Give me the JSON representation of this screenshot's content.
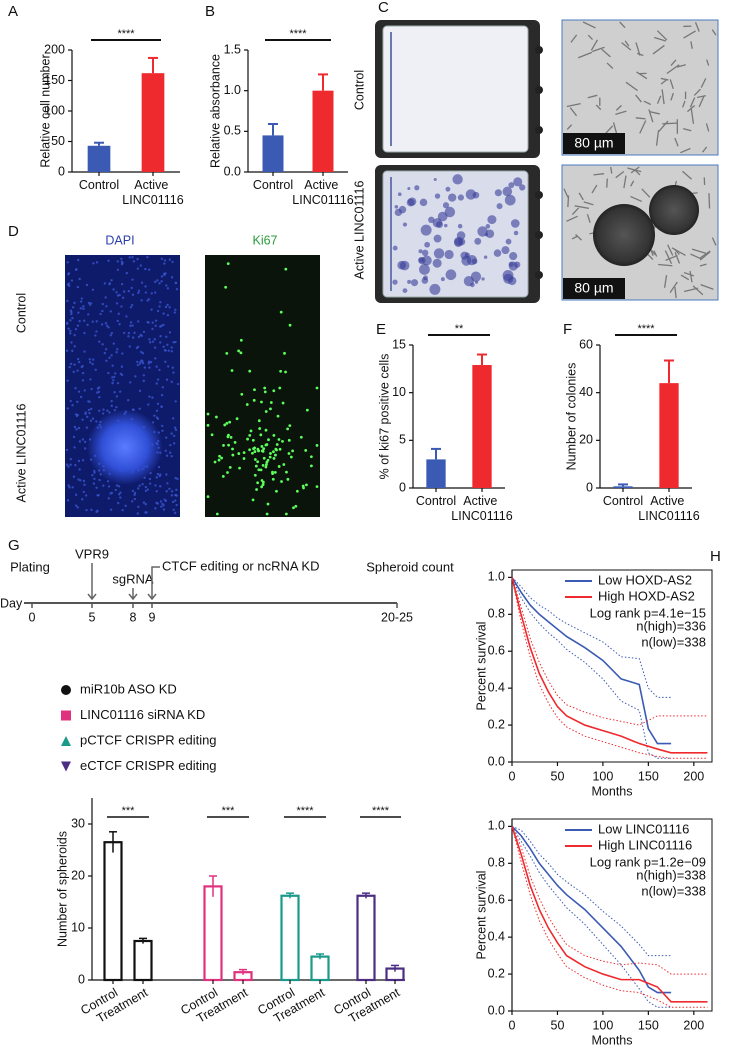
{
  "panel_labels": [
    "A",
    "B",
    "C",
    "D",
    "E",
    "F",
    "G",
    "H"
  ],
  "panel_c": {
    "row_labels": [
      "Control",
      "Active LINC01116"
    ],
    "scale_bars": [
      "80 µm",
      "80 µm"
    ]
  },
  "panel_d": {
    "column_labels": [
      "DAPI",
      "Ki67"
    ],
    "row_labels": [
      "Control",
      "Active LINC01116"
    ]
  },
  "timeline": {
    "day_label": "Day",
    "ticks": [
      "0",
      "5",
      "8",
      "9",
      "20-25"
    ],
    "events": [
      "Plating",
      "VPR9",
      "sgRNA",
      "CTCF editing or ncRNA KD",
      "Spheroid count"
    ]
  },
  "chart_data": [
    {
      "type": "bar",
      "ylabel": "Relative cell number",
      "categories": [
        "Control",
        "Active LINC01116"
      ],
      "values": [
        43,
        162
      ],
      "errors": [
        5,
        25
      ],
      "colors": [
        "#3b5ab4",
        "#ee2a2e"
      ],
      "ylim": [
        0,
        200
      ],
      "yticks": [
        0,
        50,
        100,
        150,
        200
      ],
      "significance": "****"
    },
    {
      "type": "bar",
      "ylabel": "Relative absorbance",
      "categories": [
        "Control",
        "Active LINC01116"
      ],
      "values": [
        0.45,
        1.0
      ],
      "errors": [
        0.14,
        0.2
      ],
      "colors": [
        "#3b5ab4",
        "#ee2a2e"
      ],
      "ylim": [
        0,
        1.5
      ],
      "yticks": [
        {
          "value": 0,
          "label": "0.0"
        },
        0.5,
        {
          "value": 1,
          "label": "1.0"
        },
        1.5
      ],
      "significance": "****"
    },
    {
      "type": "bar",
      "ylabel": "% of ki67 positive cells",
      "categories": [
        "Control",
        "Active LINC01116"
      ],
      "values": [
        3,
        12.9
      ],
      "errors": [
        1.1,
        1.1
      ],
      "colors": [
        "#3b5ab4",
        "#ee2a2e"
      ],
      "ylim": [
        0,
        15
      ],
      "yticks": [
        0,
        5,
        10,
        15
      ],
      "significance": "**"
    },
    {
      "type": "bar",
      "ylabel": "Number of colonies",
      "categories": [
        "Control",
        "Active LINC01116"
      ],
      "values": [
        0.7,
        44
      ],
      "errors": [
        0.8,
        9.5
      ],
      "colors": [
        "#3b5ab4",
        "#ee2a2e"
      ],
      "ylim": [
        0,
        60
      ],
      "yticks": [
        0,
        20,
        40,
        60
      ],
      "significance": "****"
    },
    {
      "type": "grouped_bar",
      "ylabel": "Number of spheroids",
      "categories": [
        "Control",
        "Treatment"
      ],
      "ylim": [
        0,
        35
      ],
      "yticks": [
        0,
        10,
        20,
        30
      ],
      "series": [
        {
          "name": "miR10b ASO KD",
          "color": "#111111",
          "marker": "circle",
          "values": [
            26.5,
            7.5
          ],
          "errors": [
            2,
            0.5
          ],
          "significance": "***"
        },
        {
          "name": "LINC01116 siRNA KD",
          "color": "#e0317e",
          "marker": "square",
          "values": [
            18,
            1.5
          ],
          "errors": [
            2,
            0.5
          ],
          "significance": "***"
        },
        {
          "name": "pCTCF CRISPR editing",
          "color": "#1a9a8a",
          "marker": "triangle-up",
          "values": [
            16.2,
            4.5
          ],
          "errors": [
            0.5,
            0.5
          ],
          "significance": "****"
        },
        {
          "name": "eCTCF CRISPR editing",
          "color": "#4b2e83",
          "marker": "triangle-down",
          "values": [
            16.2,
            2.2
          ],
          "errors": [
            0.5,
            0.6
          ],
          "significance": "****"
        }
      ]
    },
    {
      "type": "line",
      "xlabel": "Months",
      "ylabel": "Percent survival",
      "xlim": [
        0,
        220
      ],
      "xticks": [
        0,
        50,
        100,
        150,
        200
      ],
      "ylim": [
        0,
        1.04
      ],
      "yticks": [
        {
          "value": 0,
          "label": "0.0"
        },
        0.2,
        0.4,
        0.6,
        0.8,
        {
          "value": 1,
          "label": "1.0"
        }
      ],
      "annotations": [
        "Log rank p=4.1e−15",
        "n(high)=336",
        "n(low)=338"
      ],
      "series": [
        {
          "name": "Low HOXD-AS2",
          "color": "#3b5ab4",
          "x": [
            0,
            10,
            20,
            30,
            40,
            50,
            60,
            80,
            100,
            120,
            140,
            150,
            160,
            175
          ],
          "values": [
            1,
            0.92,
            0.85,
            0.8,
            0.76,
            0.72,
            0.68,
            0.62,
            0.55,
            0.45,
            0.42,
            0.18,
            0.1,
            0.1
          ],
          "ci_lower": [
            1,
            0.89,
            0.81,
            0.75,
            0.7,
            0.66,
            0.61,
            0.54,
            0.45,
            0.33,
            0.28,
            0.05,
            0.02,
            0.02
          ],
          "ci_upper": [
            1,
            0.95,
            0.89,
            0.85,
            0.82,
            0.78,
            0.75,
            0.7,
            0.65,
            0.57,
            0.56,
            0.4,
            0.35,
            0.35
          ]
        },
        {
          "name": "High HOXD-AS2",
          "color": "#ee2a2e",
          "x": [
            0,
            10,
            20,
            30,
            40,
            50,
            60,
            80,
            100,
            120,
            140,
            160,
            175,
            215
          ],
          "values": [
            1,
            0.8,
            0.62,
            0.48,
            0.38,
            0.3,
            0.25,
            0.2,
            0.17,
            0.14,
            0.1,
            0.07,
            0.05,
            0.05
          ],
          "ci_lower": [
            1,
            0.76,
            0.57,
            0.42,
            0.32,
            0.24,
            0.19,
            0.14,
            0.11,
            0.08,
            0.05,
            0.03,
            0.02,
            0.02
          ],
          "ci_upper": [
            1,
            0.84,
            0.67,
            0.54,
            0.44,
            0.36,
            0.31,
            0.27,
            0.24,
            0.22,
            0.2,
            0.25,
            0.25,
            0.25
          ]
        }
      ]
    },
    {
      "type": "line",
      "xlabel": "Months",
      "ylabel": "Percent survival",
      "xlim": [
        0,
        220
      ],
      "xticks": [
        0,
        50,
        100,
        150,
        200
      ],
      "ylim": [
        0,
        1.04
      ],
      "yticks": [
        {
          "value": 0,
          "label": "0.0"
        },
        0.2,
        0.4,
        0.6,
        0.8,
        {
          "value": 1,
          "label": "1.0"
        }
      ],
      "annotations": [
        "Log rank p=1.2e−09",
        "n(high)=338",
        "n(low)=338"
      ],
      "series": [
        {
          "name": "Low LINC01116",
          "color": "#3b5ab4",
          "x": [
            0,
            10,
            20,
            30,
            40,
            50,
            60,
            80,
            100,
            120,
            140,
            150,
            160,
            175
          ],
          "values": [
            1,
            0.95,
            0.88,
            0.8,
            0.74,
            0.68,
            0.63,
            0.55,
            0.45,
            0.35,
            0.22,
            0.13,
            0.1,
            0.1
          ],
          "ci_lower": [
            1,
            0.92,
            0.84,
            0.75,
            0.68,
            0.62,
            0.56,
            0.47,
            0.36,
            0.25,
            0.12,
            0.05,
            0.02,
            0.02
          ],
          "ci_upper": [
            1,
            0.98,
            0.92,
            0.85,
            0.8,
            0.74,
            0.7,
            0.63,
            0.54,
            0.46,
            0.36,
            0.3,
            0.3,
            0.3
          ]
        },
        {
          "name": "High LINC01116",
          "color": "#ee2a2e",
          "x": [
            0,
            10,
            20,
            30,
            40,
            50,
            60,
            80,
            100,
            120,
            140,
            160,
            175,
            215
          ],
          "values": [
            1,
            0.85,
            0.68,
            0.55,
            0.45,
            0.37,
            0.3,
            0.24,
            0.2,
            0.17,
            0.17,
            0.13,
            0.05,
            0.05
          ],
          "ci_lower": [
            1,
            0.81,
            0.63,
            0.49,
            0.39,
            0.31,
            0.24,
            0.18,
            0.14,
            0.11,
            0.1,
            0.06,
            0.02,
            0.02
          ],
          "ci_upper": [
            1,
            0.89,
            0.73,
            0.61,
            0.51,
            0.43,
            0.36,
            0.3,
            0.27,
            0.25,
            0.26,
            0.25,
            0.2,
            0.2
          ]
        }
      ]
    }
  ]
}
